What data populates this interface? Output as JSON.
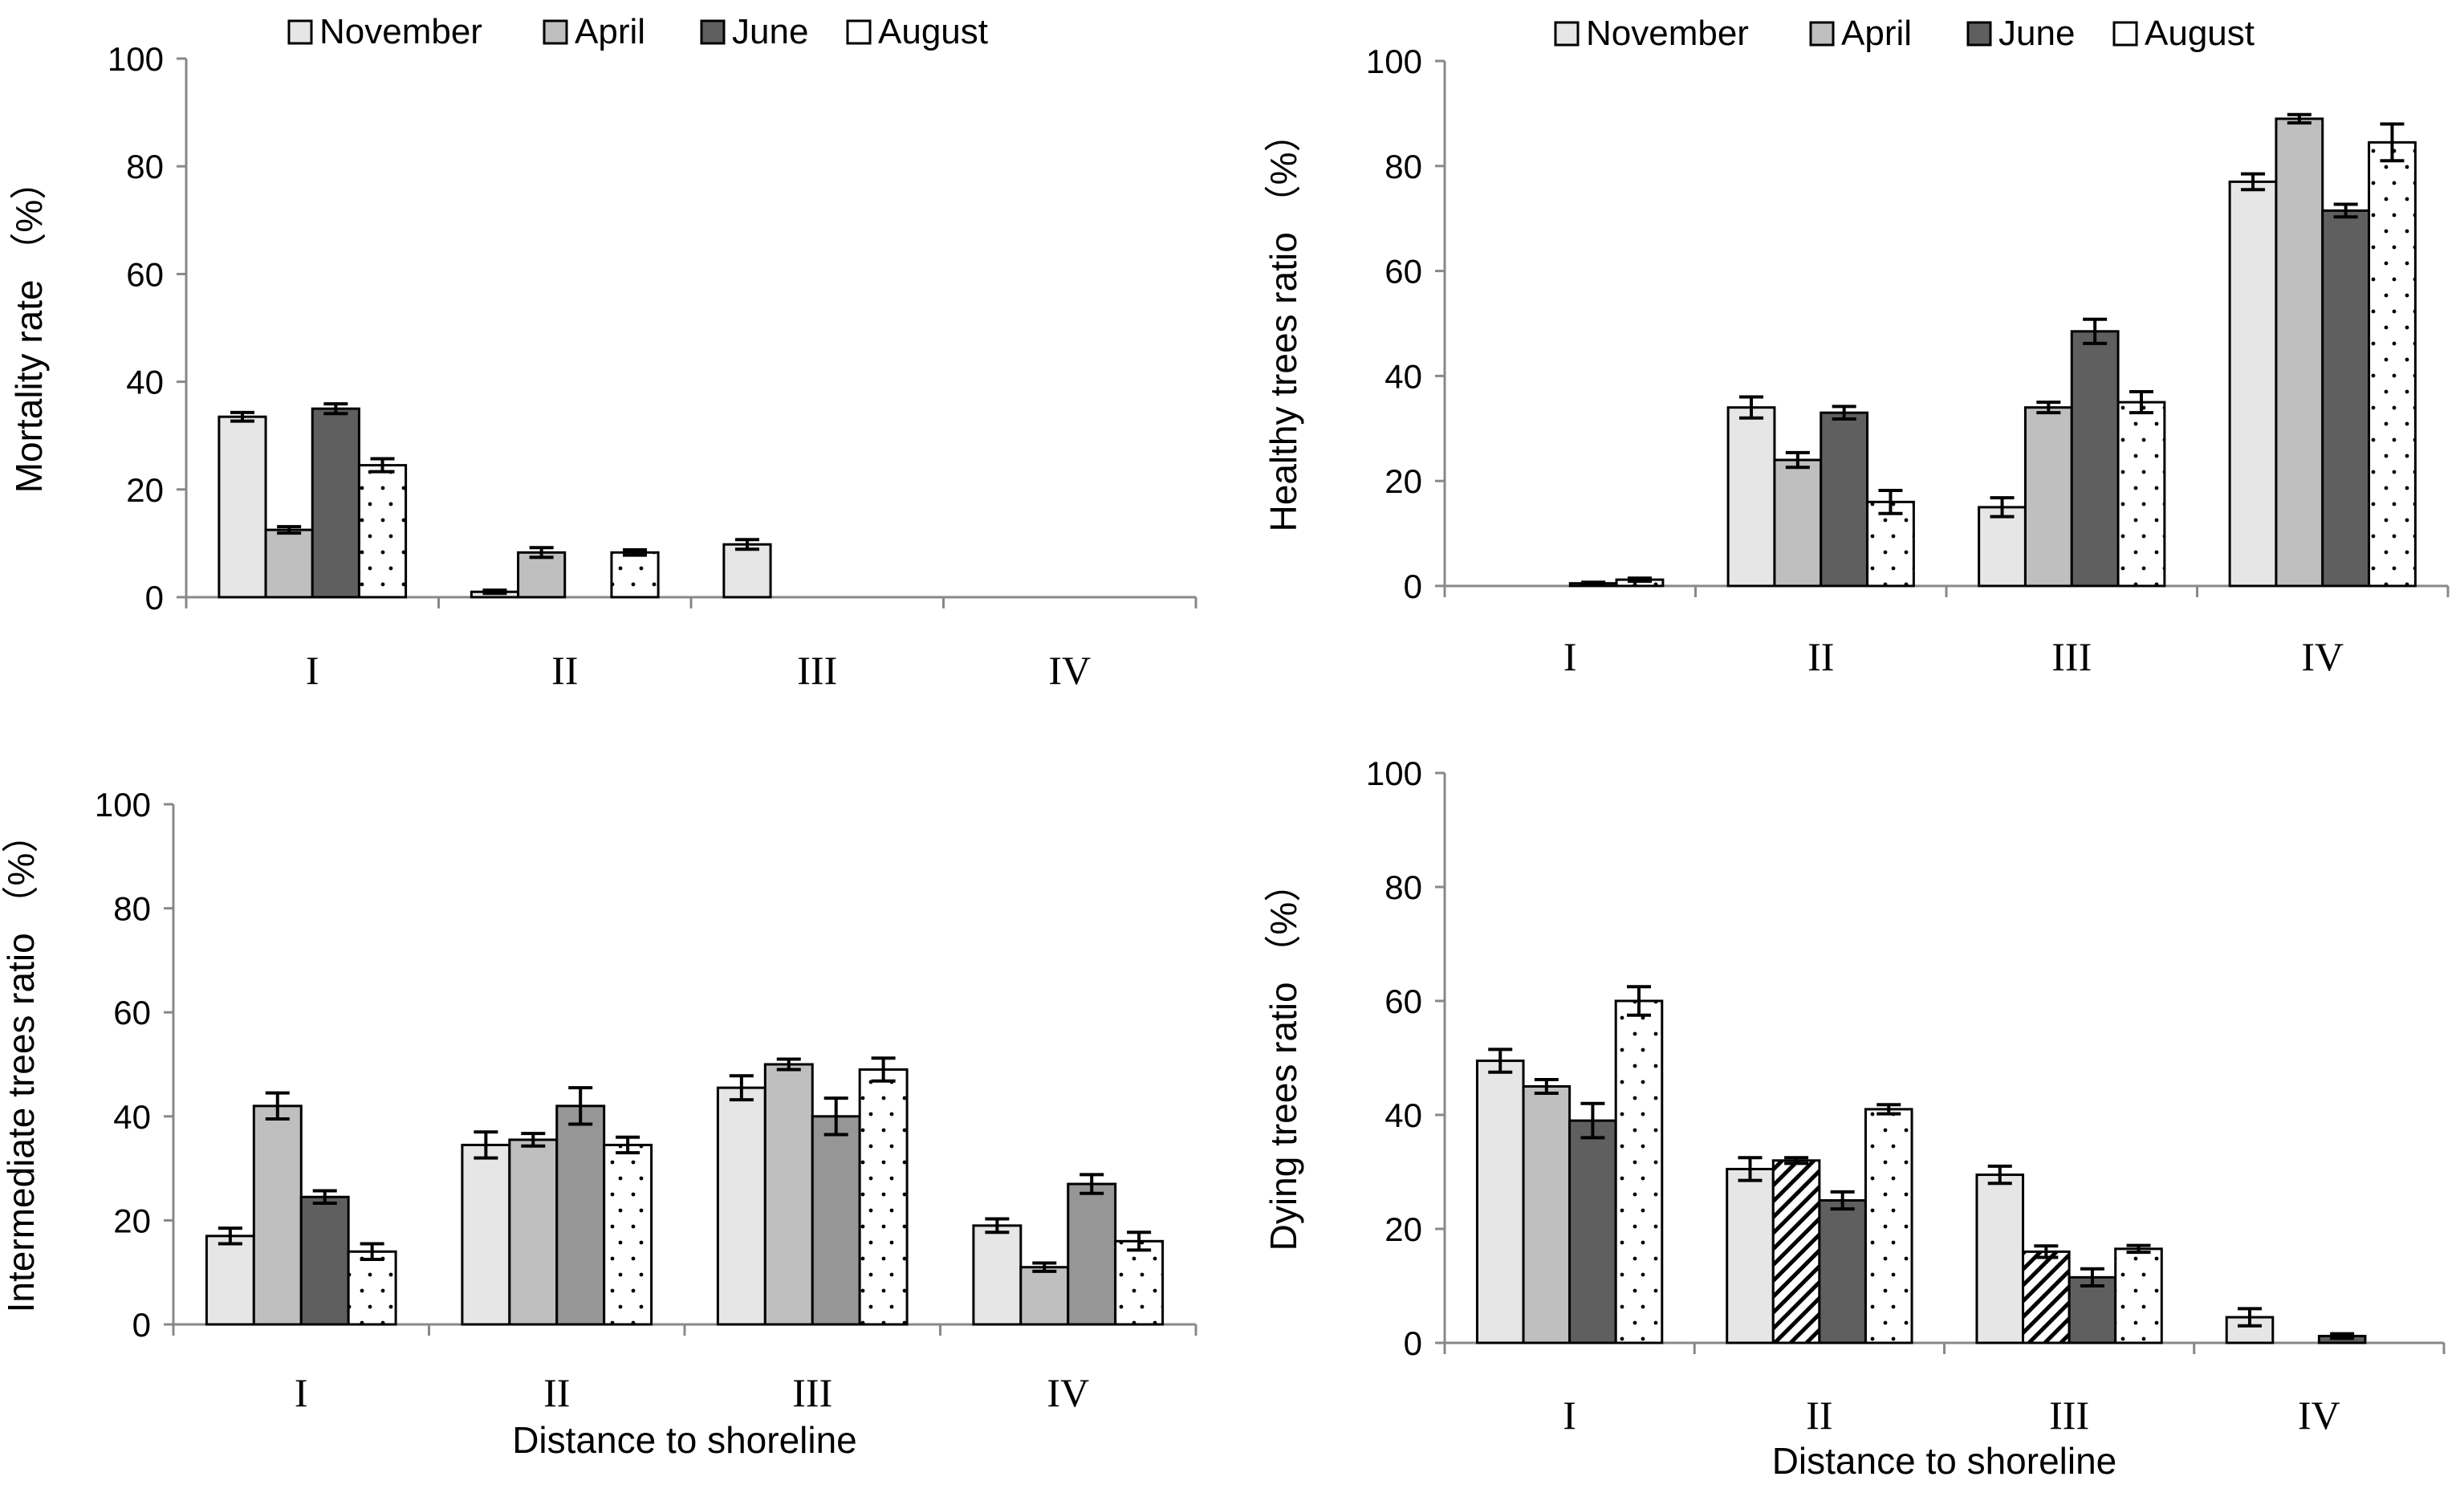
{
  "chart_data": [
    {
      "type": "bar",
      "id": "mortality",
      "title": "",
      "xlabel": "",
      "ylabel": "Mortality rate （%）",
      "categories": [
        "I",
        "II",
        "III",
        "IV"
      ],
      "ylim": [
        0,
        100
      ],
      "yticks": [
        0,
        20,
        40,
        60,
        80,
        100
      ],
      "legend": "top",
      "series": [
        {
          "name": "November",
          "values": [
            33.5,
            1,
            9.8,
            null
          ],
          "errors": [
            0.8,
            0.3,
            0.9,
            null
          ]
        },
        {
          "name": "April",
          "values": [
            12.5,
            8.3,
            null,
            null
          ],
          "errors": [
            0.6,
            0.9,
            null,
            null
          ]
        },
        {
          "name": "June",
          "values": [
            35,
            null,
            null,
            null
          ],
          "errors": [
            0.9,
            null,
            null,
            null
          ]
        },
        {
          "name": "August",
          "values": [
            24.5,
            8.3,
            null,
            null
          ],
          "errors": [
            1.2,
            0.5,
            null,
            null
          ]
        }
      ]
    },
    {
      "type": "bar",
      "id": "healthy",
      "title": "",
      "xlabel": "",
      "ylabel": "Healthy trees ratio （%）",
      "categories": [
        "I",
        "II",
        "III",
        "IV"
      ],
      "ylim": [
        0,
        100
      ],
      "yticks": [
        0,
        20,
        40,
        60,
        80,
        100
      ],
      "legend": "top",
      "series": [
        {
          "name": "November",
          "values": [
            null,
            34,
            15,
            77
          ],
          "errors": [
            null,
            2,
            1.8,
            1.5
          ]
        },
        {
          "name": "April",
          "values": [
            null,
            24,
            34,
            89
          ],
          "errors": [
            null,
            1.4,
            1,
            0.8
          ]
        },
        {
          "name": "June",
          "values": [
            0.5,
            33,
            48.5,
            71.5
          ],
          "errors": [
            0.2,
            1.2,
            2.3,
            1.2
          ]
        },
        {
          "name": "August",
          "values": [
            1.2,
            16,
            35,
            84.5
          ],
          "errors": [
            0.3,
            2.2,
            2,
            3.5
          ]
        }
      ]
    },
    {
      "type": "bar",
      "id": "intermediate",
      "title": "",
      "xlabel": "Distance to shoreline",
      "ylabel": "Intermediate trees ratio （%）",
      "categories": [
        "I",
        "II",
        "III",
        "IV"
      ],
      "ylim": [
        0,
        100
      ],
      "yticks": [
        0,
        20,
        40,
        60,
        80,
        100
      ],
      "series": [
        {
          "name": "November",
          "values": [
            17,
            34.5,
            45.5,
            19
          ],
          "errors": [
            1.5,
            2.5,
            2.3,
            1.3
          ]
        },
        {
          "name": "April",
          "values": [
            42,
            35.5,
            50,
            11
          ],
          "errors": [
            2.5,
            1.2,
            1,
            0.8
          ]
        },
        {
          "name": "June",
          "values": [
            24.5,
            42,
            40,
            27
          ],
          "errors": [
            1.2,
            3.5,
            3.5,
            1.8
          ]
        },
        {
          "name": "August",
          "values": [
            14,
            34.5,
            49,
            16
          ],
          "errors": [
            1.5,
            1.5,
            2.2,
            1.7
          ]
        }
      ]
    },
    {
      "type": "bar",
      "id": "dying",
      "title": "",
      "xlabel": "Distance to shoreline",
      "ylabel": "Dying trees ratio （%）",
      "categories": [
        "I",
        "II",
        "III",
        "IV"
      ],
      "ylim": [
        0,
        100
      ],
      "yticks": [
        0,
        20,
        40,
        60,
        80,
        100
      ],
      "series": [
        {
          "name": "November",
          "values": [
            49.5,
            30.5,
            29.5,
            4.5
          ],
          "errors": [
            2,
            2,
            1.5,
            1.5
          ]
        },
        {
          "name": "April",
          "values": [
            45,
            32,
            16,
            null
          ],
          "errors": [
            1.2,
            0.5,
            1,
            null
          ]
        },
        {
          "name": "June",
          "values": [
            39,
            25,
            11.5,
            1.2
          ],
          "errors": [
            3,
            1.5,
            1.5,
            0.4
          ]
        },
        {
          "name": "August",
          "values": [
            60,
            41,
            16.5,
            null
          ],
          "errors": [
            2.5,
            0.8,
            0.6,
            null
          ]
        }
      ]
    }
  ]
}
